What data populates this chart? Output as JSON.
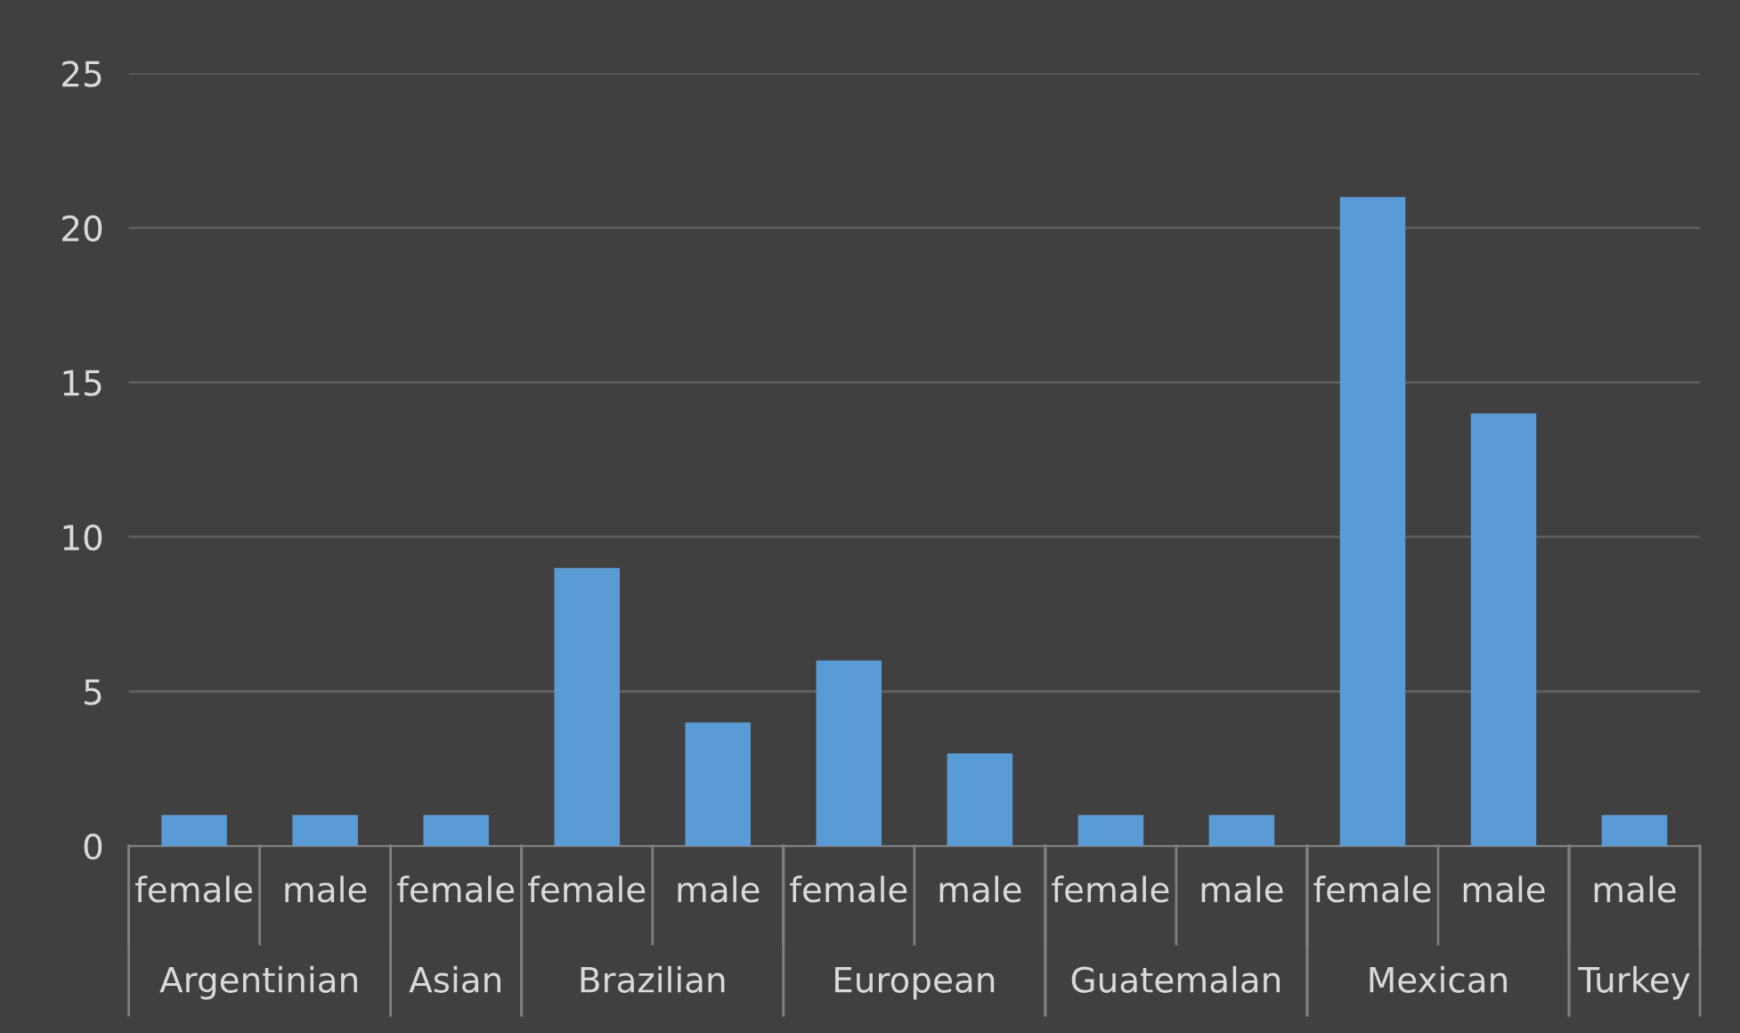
{
  "chart_data": {
    "type": "bar",
    "categories": [
      "female",
      "male",
      "female",
      "female",
      "male",
      "female",
      "male",
      "female",
      "male",
      "female",
      "male",
      "male"
    ],
    "values": [
      1,
      1,
      1,
      9,
      4,
      6,
      3,
      1,
      1,
      21,
      14,
      1
    ],
    "color": "#5b9bd5",
    "ylim": [
      0,
      25
    ],
    "yticks": [
      0,
      5,
      10,
      15,
      20,
      25
    ],
    "grid": "y",
    "legend": false,
    "annotations": [
      "Argentinian",
      "Asian",
      "Brazilian",
      "European",
      "Guatemalan",
      "Mexican",
      "Turkey"
    ]
  }
}
